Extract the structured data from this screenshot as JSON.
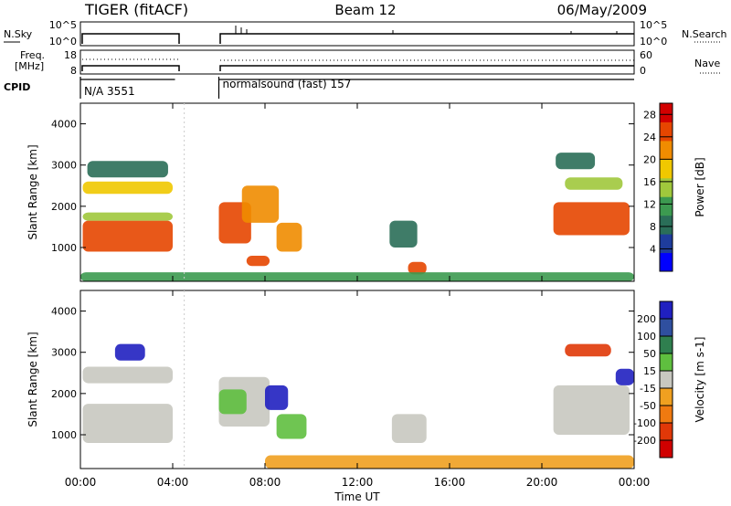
{
  "header": {
    "title": "TIGER (fitACF)",
    "beam": "Beam 12",
    "date": "06/May/2009"
  },
  "nsky_panel": {
    "left_label": "N.Sky",
    "right_label": "N.Search",
    "ticks_left": [
      "10^5",
      "10^0"
    ],
    "ticks_right": [
      "10^5",
      "10^0"
    ]
  },
  "freq_panel": {
    "left_label_1": "Freq.",
    "left_label_2": "[MHz]",
    "right_label": "Nave",
    "ticks_left": [
      "18",
      "8"
    ],
    "ticks_right": [
      "60",
      "0"
    ]
  },
  "cpid": {
    "label": "CPID",
    "segments": [
      {
        "text": "N/A 3551",
        "start_hour": 0,
        "end_hour": 4.1
      },
      {
        "text": "normalsound (fast) 157",
        "start_hour": 6,
        "end_hour": 24
      }
    ]
  },
  "colors": {
    "power_scale": [
      "#0000ff",
      "#1e3c9c",
      "#2a6e58",
      "#3c9a50",
      "#a0c83c",
      "#f0c800",
      "#f08c00",
      "#e64600",
      "#d20000"
    ],
    "velocity_scale": [
      "#2020c0",
      "#2f4f9f",
      "#2f7f4f",
      "#5fbf3f",
      "#c8c8c0",
      "#f0a020",
      "#f07a10",
      "#e03808",
      "#d00000"
    ]
  },
  "chart_data": [
    {
      "type": "heatmap",
      "name": "Power",
      "xlabel": "",
      "ylabel": "Slant Range [km]",
      "xlim": [
        0,
        24
      ],
      "ylim": [
        180,
        4500
      ],
      "yticks": [
        "1000",
        "2000",
        "3000",
        "4000"
      ],
      "colorbar": {
        "label": "Power [dB]",
        "ticks": [
          "4",
          "8",
          "12",
          "16",
          "20",
          "24",
          "28"
        ],
        "range": [
          0,
          30
        ]
      },
      "regions": [
        {
          "x0": 0.1,
          "x1": 4.0,
          "y0": 900,
          "y1": 1650,
          "value": 26
        },
        {
          "x0": 0.1,
          "x1": 4.0,
          "y0": 1650,
          "y1": 1850,
          "value": 14
        },
        {
          "x0": 0.1,
          "x1": 4.0,
          "y0": 2300,
          "y1": 2600,
          "value": 18
        },
        {
          "x0": 0.3,
          "x1": 3.8,
          "y0": 2700,
          "y1": 3100,
          "value": 8
        },
        {
          "x0": 6.0,
          "x1": 7.4,
          "y0": 1100,
          "y1": 2100,
          "value": 26
        },
        {
          "x0": 7.0,
          "x1": 8.6,
          "y0": 1600,
          "y1": 2500,
          "value": 22
        },
        {
          "x0": 8.5,
          "x1": 9.6,
          "y0": 900,
          "y1": 1600,
          "value": 20
        },
        {
          "x0": 7.2,
          "x1": 8.2,
          "y0": 550,
          "y1": 800,
          "value": 25
        },
        {
          "x0": 13.4,
          "x1": 14.6,
          "y0": 1000,
          "y1": 1650,
          "value": 8
        },
        {
          "x0": 14.2,
          "x1": 15.0,
          "y0": 350,
          "y1": 650,
          "value": 26
        },
        {
          "x0": 20.5,
          "x1": 23.8,
          "y0": 1300,
          "y1": 2100,
          "value": 25
        },
        {
          "x0": 21.0,
          "x1": 23.5,
          "y0": 2400,
          "y1": 2700,
          "value": 16
        },
        {
          "x0": 20.6,
          "x1": 22.3,
          "y0": 2900,
          "y1": 3300,
          "value": 8
        },
        {
          "x0": 0.0,
          "x1": 24.0,
          "y0": 180,
          "y1": 400,
          "value": 12
        }
      ]
    },
    {
      "type": "heatmap",
      "name": "Velocity",
      "xlabel": "Time UT",
      "ylabel": "Slant Range [km]",
      "xlim": [
        0,
        24
      ],
      "ylim": [
        180,
        4500
      ],
      "xticks": [
        "00:00",
        "04:00",
        "08:00",
        "12:00",
        "16:00",
        "20:00",
        "00:00"
      ],
      "yticks": [
        "1000",
        "2000",
        "3000",
        "4000"
      ],
      "colorbar": {
        "label": "Velocity [m s-1]",
        "ticks": [
          "200",
          "100",
          "50",
          "15",
          "-15",
          "-50",
          "-100",
          "-200"
        ],
        "range": [
          -250,
          250
        ]
      },
      "regions": [
        {
          "x0": 0.1,
          "x1": 4.0,
          "y0": 800,
          "y1": 1750,
          "value": 0
        },
        {
          "x0": 0.1,
          "x1": 4.0,
          "y0": 2250,
          "y1": 2650,
          "value": 0
        },
        {
          "x0": 1.5,
          "x1": 2.8,
          "y0": 2800,
          "y1": 3200,
          "value": 200
        },
        {
          "x0": 6.0,
          "x1": 8.2,
          "y0": 1200,
          "y1": 2400,
          "value": 0
        },
        {
          "x0": 6.0,
          "x1": 7.2,
          "y0": 1500,
          "y1": 2100,
          "value": 60
        },
        {
          "x0": 8.0,
          "x1": 9.0,
          "y0": 1600,
          "y1": 2200,
          "value": 200
        },
        {
          "x0": 8.5,
          "x1": 9.8,
          "y0": 900,
          "y1": 1500,
          "value": 40
        },
        {
          "x0": 13.5,
          "x1": 15.0,
          "y0": 800,
          "y1": 1500,
          "value": 0
        },
        {
          "x0": 20.5,
          "x1": 23.8,
          "y0": 1000,
          "y1": 2200,
          "value": 0
        },
        {
          "x0": 23.2,
          "x1": 24.0,
          "y0": 2200,
          "y1": 2600,
          "value": 200
        },
        {
          "x0": 21.0,
          "x1": 23.0,
          "y0": 2900,
          "y1": 3200,
          "value": -150
        },
        {
          "x0": 8.0,
          "x1": 24.0,
          "y0": 180,
          "y1": 500,
          "value": -60
        }
      ]
    }
  ]
}
